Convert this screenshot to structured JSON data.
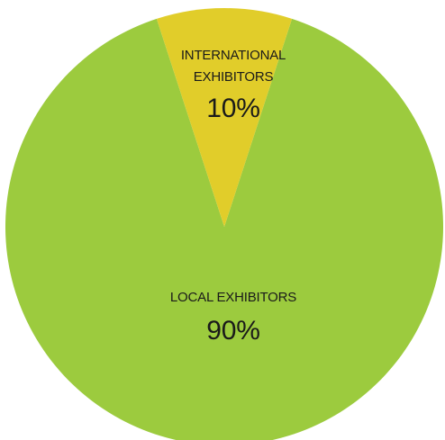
{
  "chart_data": {
    "type": "pie",
    "slices": [
      {
        "label_lines": [
          "LOCAL EXHIBITORS"
        ],
        "value_label": "90%",
        "value": 90,
        "color": "#9ccb3e"
      },
      {
        "label_lines": [
          "INTERNATIONAL",
          "EXHIBITORS"
        ],
        "value_label": "10%",
        "value": 10,
        "color": "#e1cd2a"
      }
    ],
    "legend": "none",
    "labels_placement": "inside"
  }
}
